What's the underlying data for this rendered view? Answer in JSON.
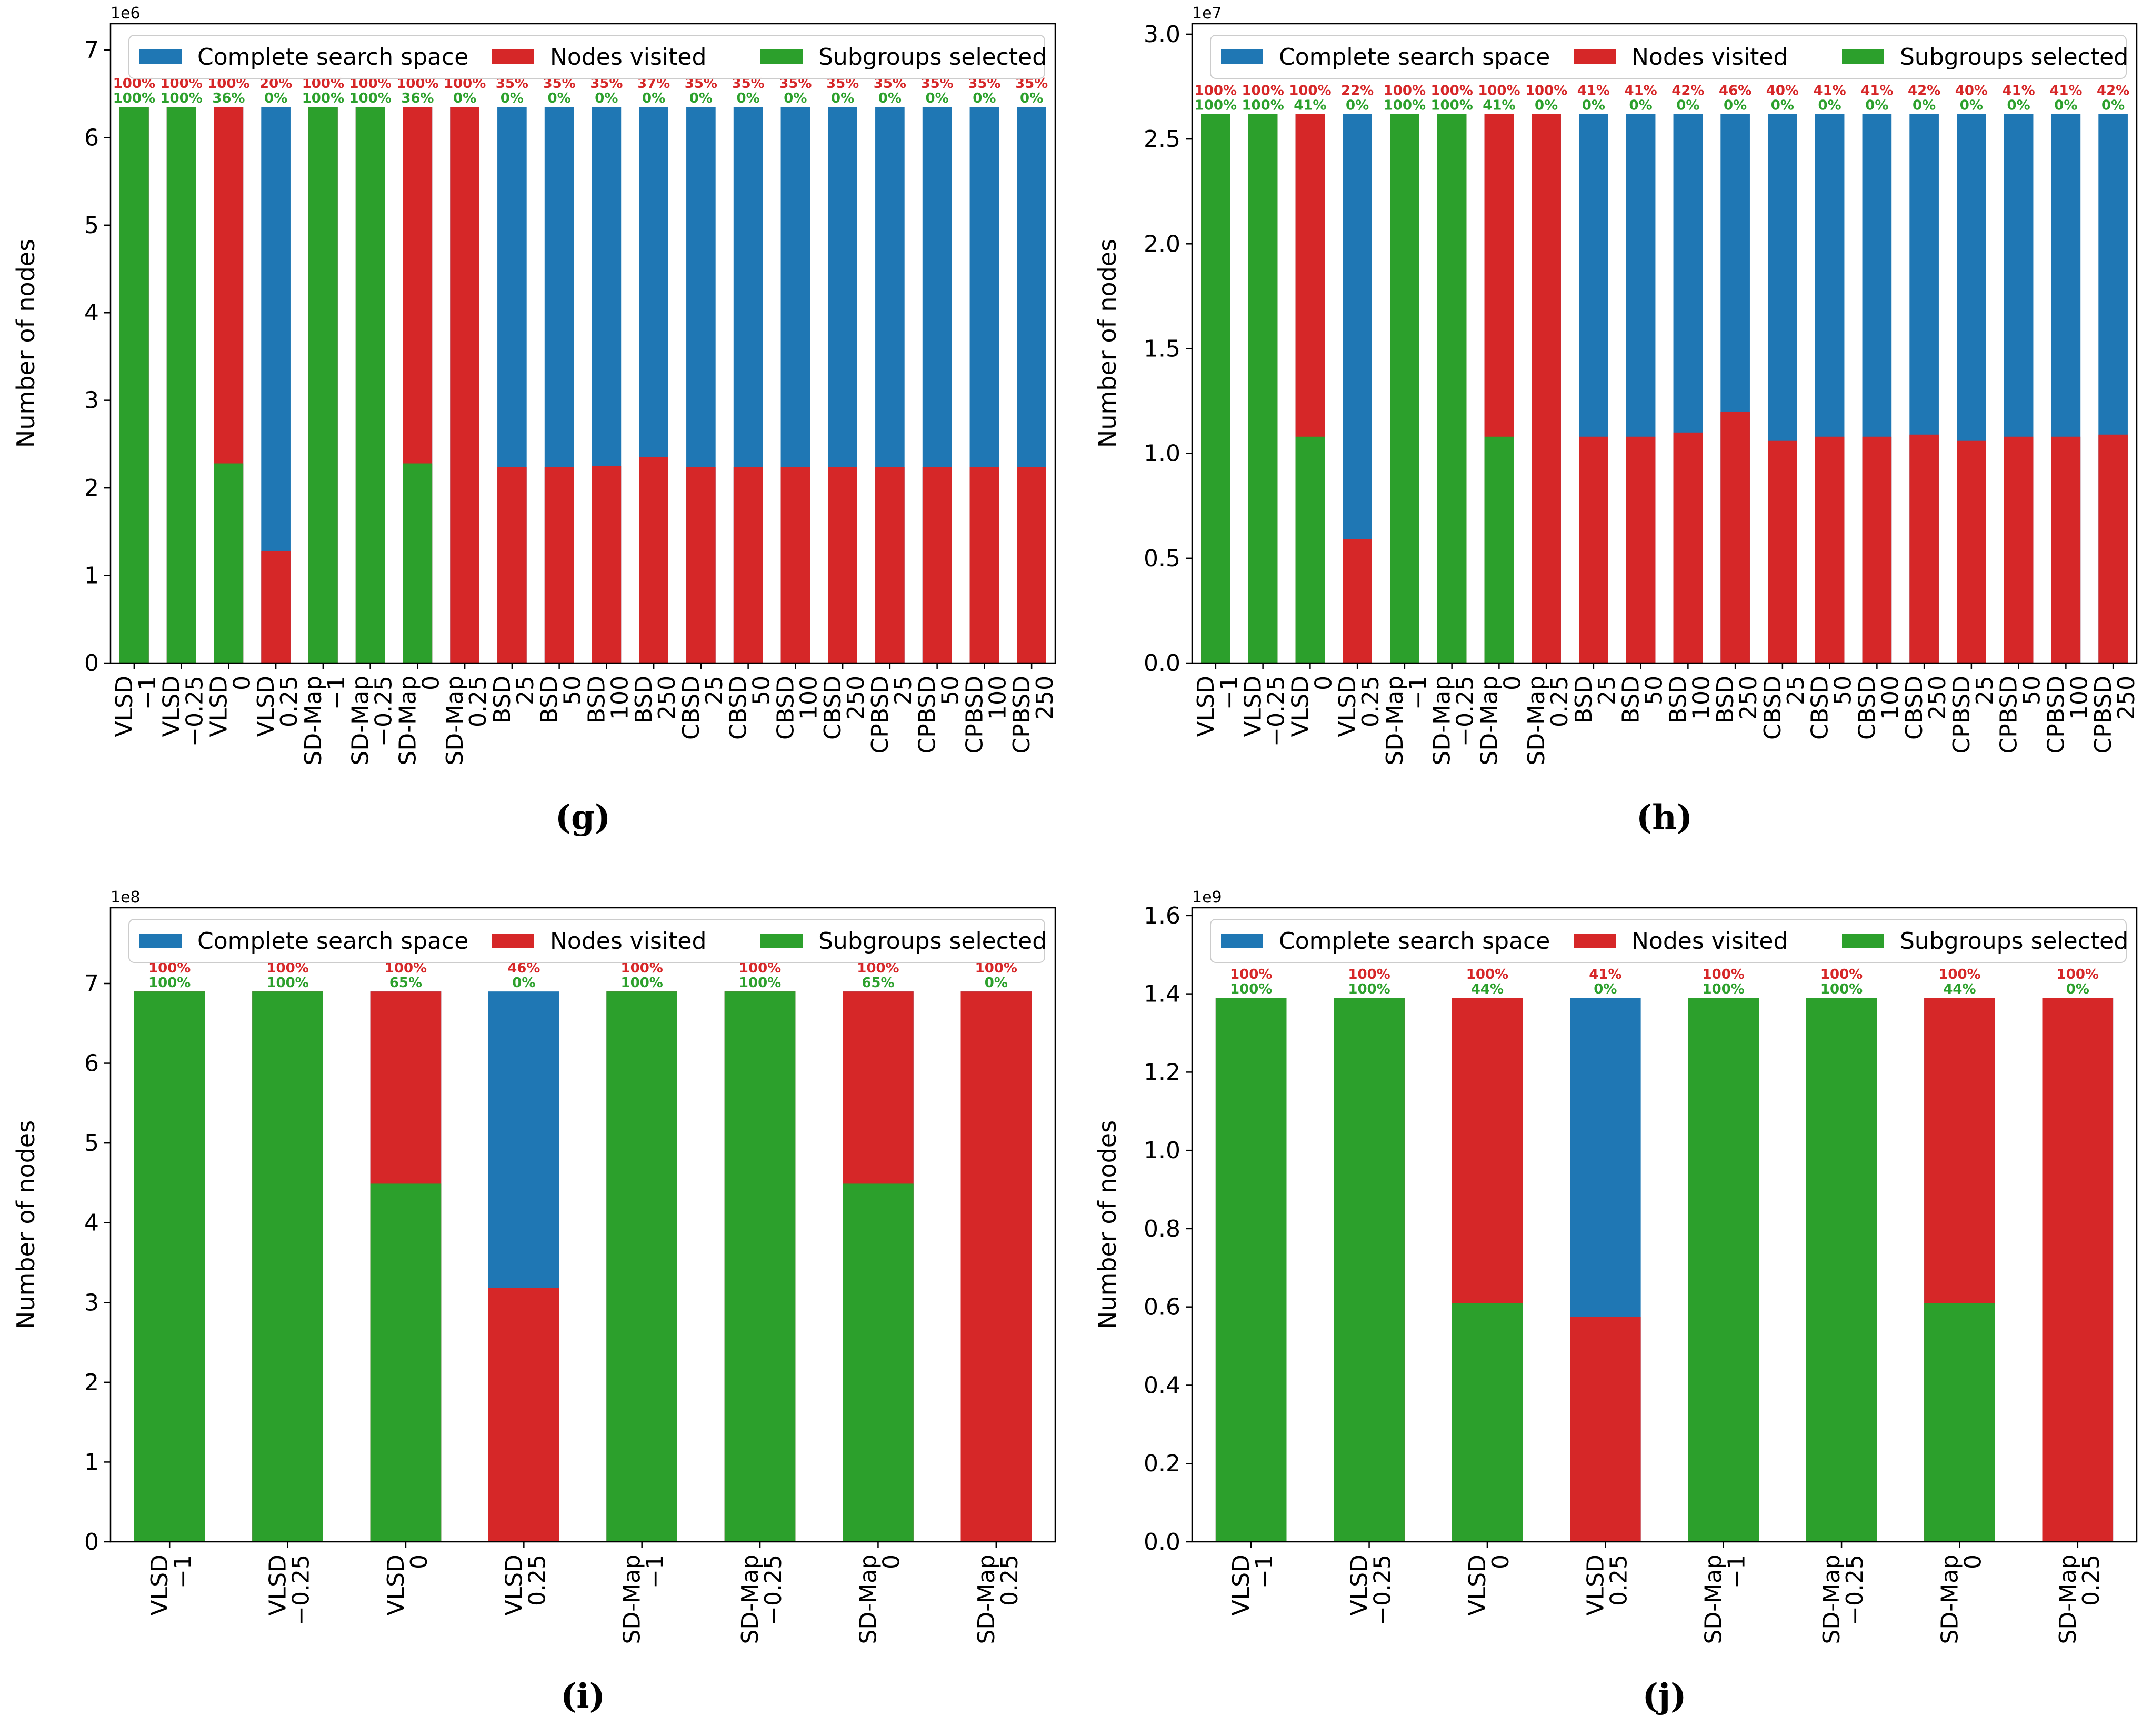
{
  "colors": {
    "complete": "#1f77b4",
    "visited": "#d62728",
    "selected": "#2ca02c"
  },
  "legend": [
    "Complete search space",
    "Nodes visited",
    "Subgroups selected"
  ],
  "chart_data": [
    {
      "type": "bar",
      "caption": "(g)",
      "ylabel": "Number of nodes",
      "exponent_label": "1e6",
      "ylim": [
        0,
        7.3
      ],
      "yticks": [
        0,
        1,
        2,
        3,
        4,
        5,
        6,
        7
      ],
      "ytick_labels": [
        "0",
        "1",
        "2",
        "3",
        "4",
        "5",
        "6",
        "7"
      ],
      "categories": [
        [
          "VLSD",
          "−1"
        ],
        [
          "VLSD",
          "−0.25"
        ],
        [
          "VLSD",
          "0"
        ],
        [
          "VLSD",
          "0.25"
        ],
        [
          "SD-Map",
          "−1"
        ],
        [
          "SD-Map",
          "−0.25"
        ],
        [
          "SD-Map",
          "0"
        ],
        [
          "SD-Map",
          "0.25"
        ],
        [
          "BSD",
          "25"
        ],
        [
          "BSD",
          "50"
        ],
        [
          "BSD",
          "100"
        ],
        [
          "BSD",
          "250"
        ],
        [
          "CBSD",
          "25"
        ],
        [
          "CBSD",
          "50"
        ],
        [
          "CBSD",
          "100"
        ],
        [
          "CBSD",
          "250"
        ],
        [
          "CPBSD",
          "25"
        ],
        [
          "CPBSD",
          "50"
        ],
        [
          "CPBSD",
          "100"
        ],
        [
          "CPBSD",
          "250"
        ]
      ],
      "series": [
        {
          "name": "Complete search space",
          "values": [
            6.35,
            6.35,
            6.35,
            6.35,
            6.35,
            6.35,
            6.35,
            6.35,
            6.35,
            6.35,
            6.35,
            6.35,
            6.35,
            6.35,
            6.35,
            6.35,
            6.35,
            6.35,
            6.35,
            6.35
          ]
        },
        {
          "name": "Nodes visited",
          "values": [
            6.35,
            6.35,
            6.35,
            1.28,
            6.35,
            6.35,
            6.35,
            6.35,
            2.24,
            2.24,
            2.25,
            2.35,
            2.24,
            2.24,
            2.24,
            2.24,
            2.24,
            2.24,
            2.24,
            2.24
          ]
        },
        {
          "name": "Subgroups selected",
          "values": [
            6.35,
            6.35,
            2.28,
            0,
            6.35,
            6.35,
            2.28,
            0,
            0,
            0,
            0,
            0,
            0,
            0,
            0,
            0,
            0,
            0,
            0,
            0
          ]
        }
      ],
      "visited_pct": [
        "100%",
        "100%",
        "100%",
        "20%",
        "100%",
        "100%",
        "100%",
        "100%",
        "35%",
        "35%",
        "35%",
        "37%",
        "35%",
        "35%",
        "35%",
        "35%",
        "35%",
        "35%",
        "35%",
        "35%"
      ],
      "selected_pct": [
        "100%",
        "100%",
        "36%",
        "0%",
        "100%",
        "100%",
        "36%",
        "0%",
        "0%",
        "0%",
        "0%",
        "0%",
        "0%",
        "0%",
        "0%",
        "0%",
        "0%",
        "0%",
        "0%",
        "0%"
      ],
      "legend_position": "top"
    },
    {
      "type": "bar",
      "caption": "(h)",
      "ylabel": "Number of nodes",
      "exponent_label": "1e7",
      "ylim": [
        0,
        3.05
      ],
      "yticks": [
        0,
        0.5,
        1.0,
        1.5,
        2.0,
        2.5,
        3.0
      ],
      "ytick_labels": [
        "0.0",
        "0.5",
        "1.0",
        "1.5",
        "2.0",
        "2.5",
        "3.0"
      ],
      "categories": [
        [
          "VLSD",
          "−1"
        ],
        [
          "VLSD",
          "−0.25"
        ],
        [
          "VLSD",
          "0"
        ],
        [
          "VLSD",
          "0.25"
        ],
        [
          "SD-Map",
          "−1"
        ],
        [
          "SD-Map",
          "−0.25"
        ],
        [
          "SD-Map",
          "0"
        ],
        [
          "SD-Map",
          "0.25"
        ],
        [
          "BSD",
          "25"
        ],
        [
          "BSD",
          "50"
        ],
        [
          "BSD",
          "100"
        ],
        [
          "BSD",
          "250"
        ],
        [
          "CBSD",
          "25"
        ],
        [
          "CBSD",
          "50"
        ],
        [
          "CBSD",
          "100"
        ],
        [
          "CBSD",
          "250"
        ],
        [
          "CPBSD",
          "25"
        ],
        [
          "CPBSD",
          "50"
        ],
        [
          "CPBSD",
          "100"
        ],
        [
          "CPBSD",
          "250"
        ]
      ],
      "series": [
        {
          "name": "Complete search space",
          "values": [
            2.62,
            2.62,
            2.62,
            2.62,
            2.62,
            2.62,
            2.62,
            2.62,
            2.62,
            2.62,
            2.62,
            2.62,
            2.62,
            2.62,
            2.62,
            2.62,
            2.62,
            2.62,
            2.62,
            2.62
          ]
        },
        {
          "name": "Nodes visited",
          "values": [
            2.62,
            2.62,
            2.62,
            0.59,
            2.62,
            2.62,
            2.62,
            2.62,
            1.08,
            1.08,
            1.1,
            1.2,
            1.06,
            1.08,
            1.08,
            1.09,
            1.06,
            1.08,
            1.08,
            1.09
          ]
        },
        {
          "name": "Subgroups selected",
          "values": [
            2.62,
            2.62,
            1.08,
            0,
            2.62,
            2.62,
            1.08,
            0,
            0,
            0,
            0,
            0,
            0,
            0,
            0,
            0,
            0,
            0,
            0,
            0
          ]
        }
      ],
      "visited_pct": [
        "100%",
        "100%",
        "100%",
        "22%",
        "100%",
        "100%",
        "100%",
        "100%",
        "41%",
        "41%",
        "42%",
        "46%",
        "40%",
        "41%",
        "41%",
        "42%",
        "40%",
        "41%",
        "41%",
        "42%"
      ],
      "selected_pct": [
        "100%",
        "100%",
        "41%",
        "0%",
        "100%",
        "100%",
        "41%",
        "0%",
        "0%",
        "0%",
        "0%",
        "0%",
        "0%",
        "0%",
        "0%",
        "0%",
        "0%",
        "0%",
        "0%",
        "0%"
      ],
      "legend_position": "top"
    },
    {
      "type": "bar",
      "caption": "(i)",
      "ylabel": "Number of nodes",
      "exponent_label": "1e8",
      "ylim": [
        0,
        7.95
      ],
      "yticks": [
        0,
        1,
        2,
        3,
        4,
        5,
        6,
        7
      ],
      "ytick_labels": [
        "0",
        "1",
        "2",
        "3",
        "4",
        "5",
        "6",
        "7"
      ],
      "categories": [
        [
          "VLSD",
          "−1"
        ],
        [
          "VLSD",
          "−0.25"
        ],
        [
          "VLSD",
          "0"
        ],
        [
          "VLSD",
          "0.25"
        ],
        [
          "SD-Map",
          "−1"
        ],
        [
          "SD-Map",
          "−0.25"
        ],
        [
          "SD-Map",
          "0"
        ],
        [
          "SD-Map",
          "0.25"
        ]
      ],
      "series": [
        {
          "name": "Complete search space",
          "values": [
            6.9,
            6.9,
            6.9,
            6.9,
            6.9,
            6.9,
            6.9,
            6.9
          ]
        },
        {
          "name": "Nodes visited",
          "values": [
            6.9,
            6.9,
            6.9,
            3.18,
            6.9,
            6.9,
            6.9,
            6.9
          ]
        },
        {
          "name": "Subgroups selected",
          "values": [
            6.9,
            6.9,
            4.49,
            0,
            6.9,
            6.9,
            4.49,
            0
          ]
        }
      ],
      "visited_pct": [
        "100%",
        "100%",
        "100%",
        "46%",
        "100%",
        "100%",
        "100%",
        "100%"
      ],
      "selected_pct": [
        "100%",
        "100%",
        "65%",
        "0%",
        "100%",
        "100%",
        "65%",
        "0%"
      ],
      "legend_position": "top"
    },
    {
      "type": "bar",
      "caption": "(j)",
      "ylabel": "Number of nodes",
      "exponent_label": "1e9",
      "ylim": [
        0,
        1.62
      ],
      "yticks": [
        0,
        0.2,
        0.4,
        0.6,
        0.8,
        1.0,
        1.2,
        1.4,
        1.6
      ],
      "ytick_labels": [
        "0.0",
        "0.2",
        "0.4",
        "0.6",
        "0.8",
        "1.0",
        "1.2",
        "1.4",
        "1.6"
      ],
      "categories": [
        [
          "VLSD",
          "−1"
        ],
        [
          "VLSD",
          "−0.25"
        ],
        [
          "VLSD",
          "0"
        ],
        [
          "VLSD",
          "0.25"
        ],
        [
          "SD-Map",
          "−1"
        ],
        [
          "SD-Map",
          "−0.25"
        ],
        [
          "SD-Map",
          "0"
        ],
        [
          "SD-Map",
          "0.25"
        ]
      ],
      "series": [
        {
          "name": "Complete search space",
          "values": [
            1.39,
            1.39,
            1.39,
            1.39,
            1.39,
            1.39,
            1.39,
            1.39
          ]
        },
        {
          "name": "Nodes visited",
          "values": [
            1.39,
            1.39,
            1.39,
            0.575,
            1.39,
            1.39,
            1.39,
            1.39
          ]
        },
        {
          "name": "Subgroups selected",
          "values": [
            1.39,
            1.39,
            0.61,
            0,
            1.39,
            1.39,
            0.61,
            0
          ]
        }
      ],
      "visited_pct": [
        "100%",
        "100%",
        "100%",
        "41%",
        "100%",
        "100%",
        "100%",
        "100%"
      ],
      "selected_pct": [
        "100%",
        "100%",
        "44%",
        "0%",
        "100%",
        "100%",
        "44%",
        "0%"
      ],
      "legend_position": "top"
    }
  ]
}
